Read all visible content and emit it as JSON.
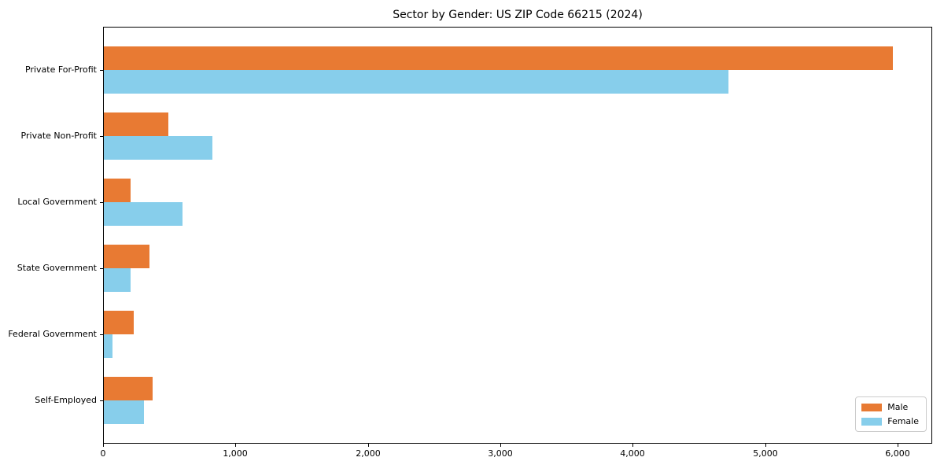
{
  "title": "Sector by Gender: US ZIP Code 66215 (2024)",
  "chart_data": {
    "type": "bar",
    "orientation": "horizontal",
    "title": "Sector by Gender: US ZIP Code 66215 (2024)",
    "categories": [
      "Private For-Profit",
      "Private Non-Profit",
      "Local Government",
      "State Government",
      "Federal Government",
      "Self-Employed"
    ],
    "series": [
      {
        "name": "Male",
        "color": "#E87A33",
        "values": [
          5960,
          490,
          200,
          345,
          225,
          370
        ]
      },
      {
        "name": "Female",
        "color": "#87CEEB",
        "values": [
          4720,
          820,
          595,
          200,
          65,
          305
        ]
      }
    ],
    "xlabel": "",
    "ylabel": "",
    "xlim": [
      0,
      6250
    ],
    "x_ticks": [
      0,
      1000,
      2000,
      3000,
      4000,
      5000,
      6000
    ],
    "x_tick_labels": [
      "0",
      "1,000",
      "2,000",
      "3,000",
      "4,000",
      "5,000",
      "6,000"
    ],
    "legend_position": "lower right",
    "grid": false,
    "frame_color": "#000000",
    "background_color": "#ffffff"
  }
}
